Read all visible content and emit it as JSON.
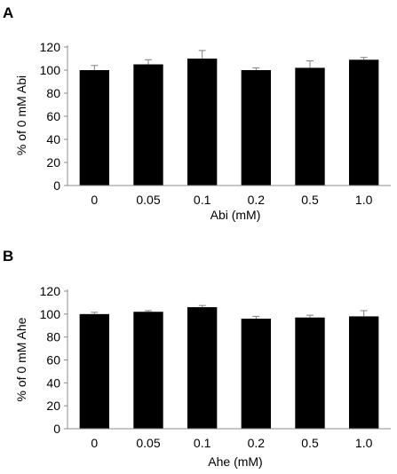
{
  "chart_data": [
    {
      "type": "bar",
      "panel_label": "A",
      "categories": [
        "0",
        "0.05",
        "0.1",
        "0.2",
        "0.5",
        "1.0"
      ],
      "values": [
        100,
        105,
        110,
        100,
        102,
        109
      ],
      "errors": [
        4,
        4,
        7,
        2,
        6,
        2
      ],
      "xlabel": "Abi (mM)",
      "ylabel": "% of 0 mM Abi",
      "ylim": [
        0,
        120
      ],
      "yticks": [
        0,
        20,
        40,
        60,
        80,
        100,
        120
      ],
      "grid": false,
      "bar_color": "#000000"
    },
    {
      "type": "bar",
      "panel_label": "B",
      "categories": [
        "0",
        "0.05",
        "0.1",
        "0.2",
        "0.5",
        "1.0"
      ],
      "values": [
        100,
        102,
        106,
        96,
        97,
        98
      ],
      "errors": [
        1.5,
        1,
        1.5,
        2,
        2,
        5
      ],
      "xlabel": "Ahe (mM)",
      "ylabel": "% of 0 mM Ahe",
      "ylim": [
        0,
        120
      ],
      "yticks": [
        0,
        20,
        40,
        60,
        80,
        100,
        120
      ],
      "grid": false,
      "bar_color": "#000000"
    }
  ]
}
